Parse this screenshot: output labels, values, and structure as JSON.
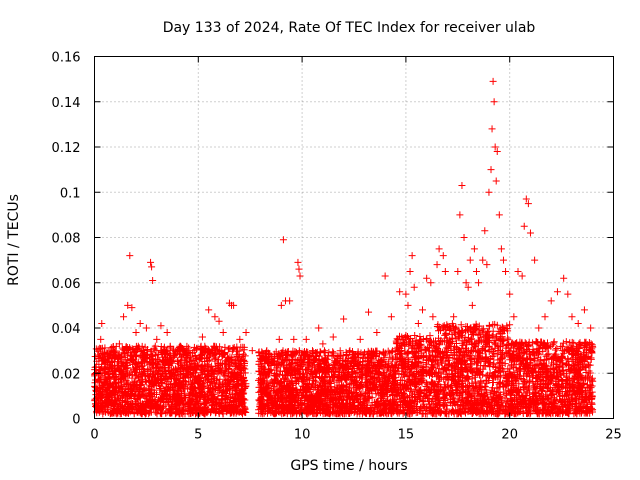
{
  "chart_data": {
    "type": "scatter",
    "title": "Day 133 of 2024, Rate Of TEC Index for receiver ulab",
    "xlabel": "GPS time / hours",
    "ylabel": "ROTI / TECUs",
    "xlim": [
      0,
      25
    ],
    "ylim": [
      0,
      0.16
    ],
    "xticks": [
      0,
      5,
      10,
      15,
      20,
      25
    ],
    "xtick_labels": [
      "0",
      "5",
      "10",
      "15",
      "20",
      "25"
    ],
    "yticks": [
      0,
      0.02,
      0.04,
      0.06,
      0.08,
      0.1,
      0.12,
      0.14,
      0.16
    ],
    "ytick_labels": [
      "0",
      "0.02",
      "0.04",
      "0.06",
      "0.08",
      "0.1",
      "0.12",
      "0.14",
      "0.16"
    ],
    "grid": true,
    "marker": "plus",
    "color": "#ff0000",
    "series": [
      {
        "name": "ROTI",
        "points": [
          [
            0.1,
            0.012
          ],
          [
            0.2,
            0.028
          ],
          [
            0.3,
            0.035
          ],
          [
            0.35,
            0.042
          ],
          [
            0.5,
            0.02
          ],
          [
            0.7,
            0.015
          ],
          [
            0.9,
            0.03
          ],
          [
            1.0,
            0.018
          ],
          [
            1.2,
            0.033
          ],
          [
            1.4,
            0.045
          ],
          [
            1.6,
            0.05
          ],
          [
            1.7,
            0.072
          ],
          [
            1.8,
            0.049
          ],
          [
            2.0,
            0.038
          ],
          [
            2.2,
            0.042
          ],
          [
            2.5,
            0.04
          ],
          [
            2.7,
            0.069
          ],
          [
            2.75,
            0.067
          ],
          [
            2.8,
            0.061
          ],
          [
            3.0,
            0.035
          ],
          [
            3.2,
            0.041
          ],
          [
            3.5,
            0.038
          ],
          [
            3.8,
            0.03
          ],
          [
            4.0,
            0.01
          ],
          [
            4.2,
            0.022
          ],
          [
            4.5,
            0.028
          ],
          [
            4.8,
            0.03
          ],
          [
            5.2,
            0.036
          ],
          [
            5.5,
            0.048
          ],
          [
            5.8,
            0.045
          ],
          [
            6.0,
            0.043
          ],
          [
            6.2,
            0.038
          ],
          [
            6.5,
            0.051
          ],
          [
            6.6,
            0.05
          ],
          [
            6.7,
            0.05
          ],
          [
            7.0,
            0.035
          ],
          [
            7.3,
            0.038
          ],
          [
            7.6,
            0.03
          ],
          [
            8.0,
            0.012
          ],
          [
            8.3,
            0.03
          ],
          [
            8.6,
            0.025
          ],
          [
            8.9,
            0.035
          ],
          [
            9.0,
            0.05
          ],
          [
            9.1,
            0.079
          ],
          [
            9.2,
            0.052
          ],
          [
            9.4,
            0.052
          ],
          [
            9.6,
            0.035
          ],
          [
            9.8,
            0.069
          ],
          [
            9.85,
            0.066
          ],
          [
            9.9,
            0.063
          ],
          [
            10.2,
            0.035
          ],
          [
            10.5,
            0.03
          ],
          [
            10.8,
            0.04
          ],
          [
            11.0,
            0.033
          ],
          [
            11.5,
            0.036
          ],
          [
            12.0,
            0.044
          ],
          [
            12.3,
            0.03
          ],
          [
            12.8,
            0.035
          ],
          [
            13.2,
            0.047
          ],
          [
            13.6,
            0.038
          ],
          [
            14.0,
            0.063
          ],
          [
            14.3,
            0.045
          ],
          [
            14.7,
            0.056
          ],
          [
            15.0,
            0.055
          ],
          [
            15.1,
            0.05
          ],
          [
            15.2,
            0.065
          ],
          [
            15.3,
            0.072
          ],
          [
            15.4,
            0.058
          ],
          [
            15.6,
            0.042
          ],
          [
            15.8,
            0.048
          ],
          [
            16.0,
            0.062
          ],
          [
            16.2,
            0.06
          ],
          [
            16.3,
            0.045
          ],
          [
            16.5,
            0.068
          ],
          [
            16.6,
            0.075
          ],
          [
            16.8,
            0.072
          ],
          [
            16.9,
            0.065
          ],
          [
            17.1,
            0.04
          ],
          [
            17.3,
            0.045
          ],
          [
            17.5,
            0.065
          ],
          [
            17.6,
            0.09
          ],
          [
            17.7,
            0.103
          ],
          [
            17.8,
            0.08
          ],
          [
            17.9,
            0.06
          ],
          [
            18.0,
            0.058
          ],
          [
            18.1,
            0.07
          ],
          [
            18.2,
            0.05
          ],
          [
            18.3,
            0.075
          ],
          [
            18.4,
            0.065
          ],
          [
            18.5,
            0.06
          ],
          [
            18.7,
            0.07
          ],
          [
            18.8,
            0.083
          ],
          [
            18.9,
            0.068
          ],
          [
            19.0,
            0.1
          ],
          [
            19.1,
            0.11
          ],
          [
            19.15,
            0.128
          ],
          [
            19.2,
            0.149
          ],
          [
            19.25,
            0.14
          ],
          [
            19.3,
            0.12
          ],
          [
            19.35,
            0.105
          ],
          [
            19.4,
            0.118
          ],
          [
            19.5,
            0.09
          ],
          [
            19.6,
            0.075
          ],
          [
            19.7,
            0.07
          ],
          [
            19.8,
            0.065
          ],
          [
            20.0,
            0.055
          ],
          [
            20.2,
            0.045
          ],
          [
            20.4,
            0.065
          ],
          [
            20.6,
            0.063
          ],
          [
            20.7,
            0.085
          ],
          [
            20.8,
            0.097
          ],
          [
            20.9,
            0.095
          ],
          [
            21.0,
            0.082
          ],
          [
            21.2,
            0.07
          ],
          [
            21.4,
            0.04
          ],
          [
            21.7,
            0.045
          ],
          [
            22.0,
            0.052
          ],
          [
            22.3,
            0.056
          ],
          [
            22.6,
            0.062
          ],
          [
            22.8,
            0.055
          ],
          [
            23.0,
            0.045
          ],
          [
            23.3,
            0.042
          ],
          [
            23.6,
            0.048
          ],
          [
            23.9,
            0.04
          ]
        ],
        "clusters": [
          {
            "x_start": 0.0,
            "x_end": 4.0,
            "y_base_max": 0.03
          },
          {
            "x_start": 4.0,
            "x_end": 7.3,
            "y_base_max": 0.03
          },
          {
            "x_start": 7.9,
            "x_end": 14.5,
            "y_base_max": 0.028
          },
          {
            "x_start": 14.5,
            "x_end": 16.5,
            "y_base_max": 0.035
          },
          {
            "x_start": 16.5,
            "x_end": 20.0,
            "y_base_max": 0.04
          },
          {
            "x_start": 20.0,
            "x_end": 24.0,
            "y_base_max": 0.032
          }
        ]
      }
    ]
  }
}
